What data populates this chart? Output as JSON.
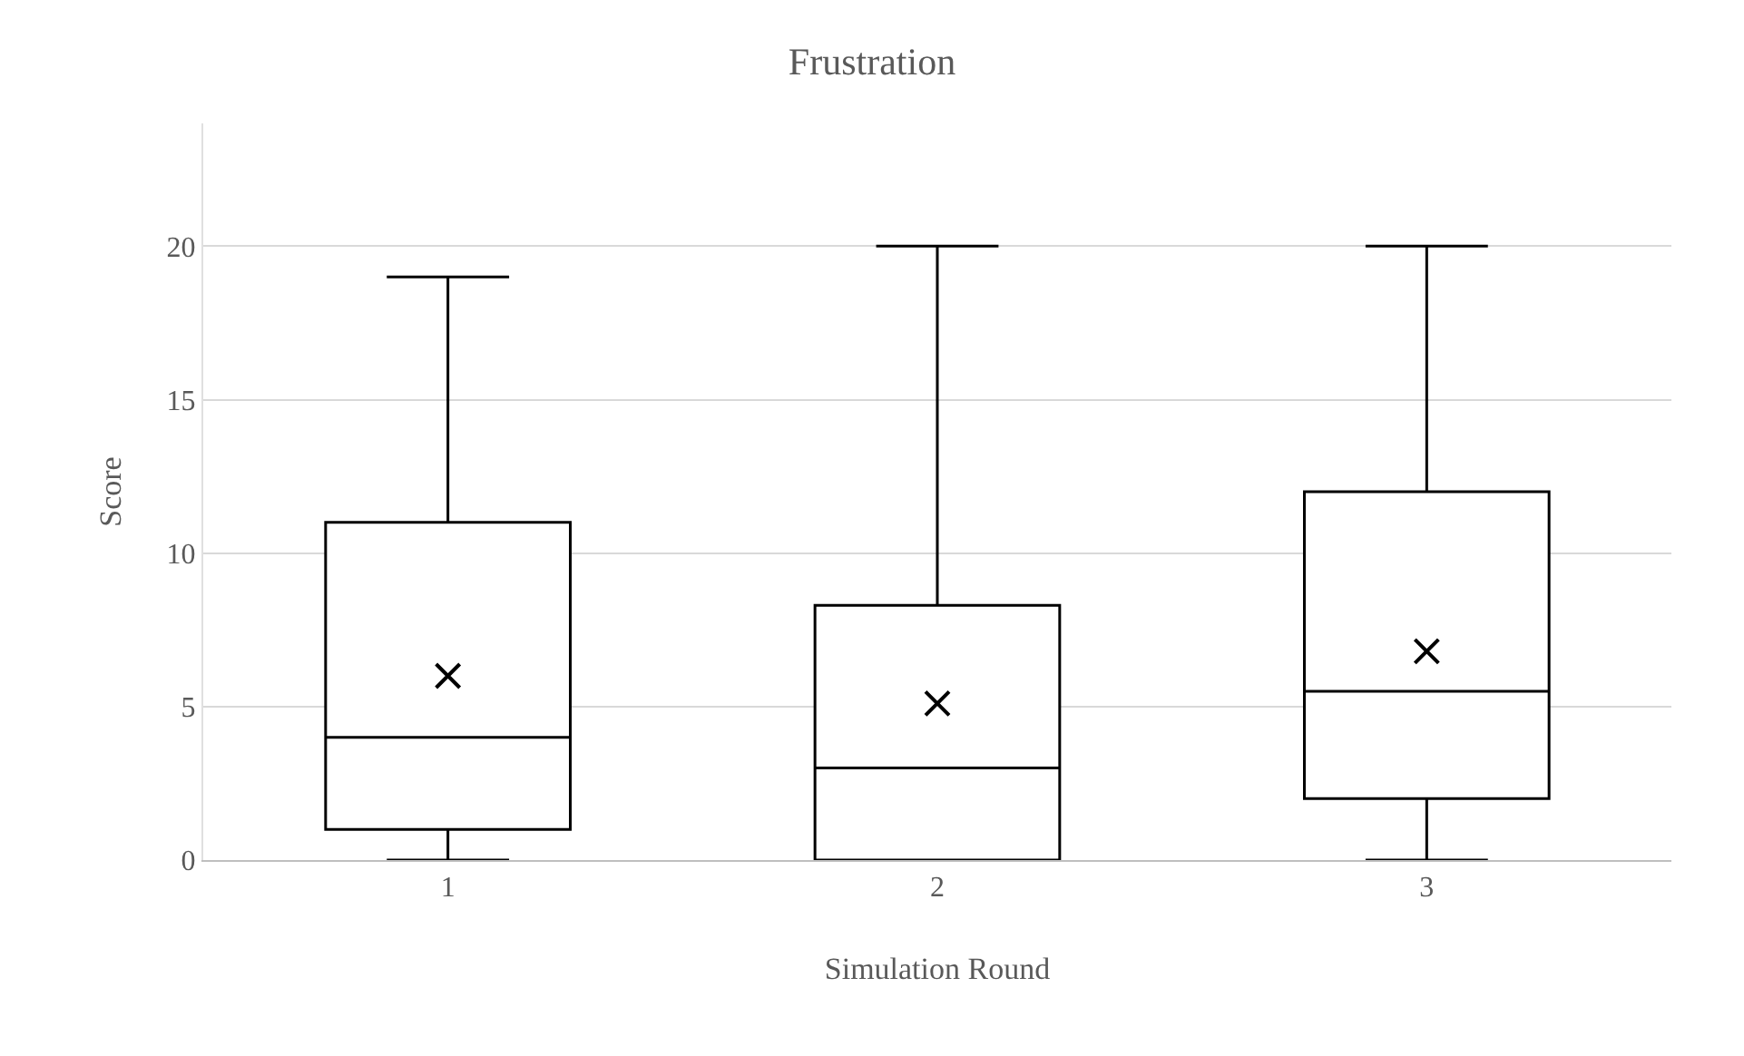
{
  "chart_data": {
    "type": "box",
    "title": "Frustration",
    "xlabel": "Simulation Round",
    "ylabel": "Score",
    "categories": [
      "1",
      "2",
      "3"
    ],
    "boxes": [
      {
        "low": 0,
        "q1": 1,
        "median": 4,
        "q3": 11,
        "high": 19,
        "mean": 6
      },
      {
        "low": 0,
        "q1": 0,
        "median": 3,
        "q3": 8.3,
        "high": 20,
        "mean": 5.1
      },
      {
        "low": 0,
        "q1": 2,
        "median": 5.5,
        "q3": 12,
        "high": 20,
        "mean": 6.8
      }
    ],
    "color": "#000000",
    "ylim": [
      0,
      24
    ],
    "yticks": [
      0,
      5,
      10,
      15,
      20
    ],
    "grid": "y"
  }
}
